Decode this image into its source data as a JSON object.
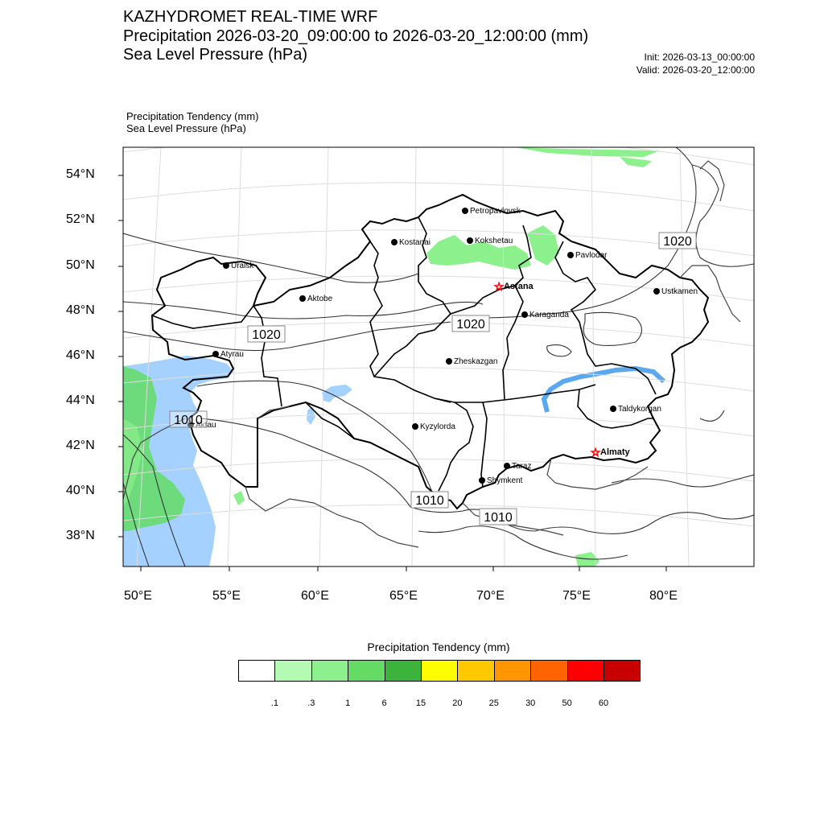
{
  "header": {
    "line1": "KAZHYDROMET REAL-TIME WRF",
    "line2": "Precipitation 2026-03-20_09:00:00 to 2026-03-20_12:00:00 (mm)",
    "line3": "Sea Level Pressure  (hPa)",
    "init": "Init: 2026-03-13_00:00:00",
    "valid": "Valid: 2026-03-20_12:00:00"
  },
  "subtitle": {
    "line1": "Precipitation Tendency   (mm)",
    "line2": "Sea Level Pressure   (hPa)"
  },
  "axes": {
    "lat_labels": [
      "54°N",
      "52°N",
      "50°N",
      "48°N",
      "46°N",
      "44°N",
      "42°N",
      "40°N",
      "38°N"
    ],
    "lon_labels": [
      "50°E",
      "55°E",
      "60°E",
      "65°E",
      "70°E",
      "75°E",
      "80°E"
    ]
  },
  "cities": [
    {
      "name": "Petropavlovsk",
      "bold": false
    },
    {
      "name": "Kostanai",
      "bold": false
    },
    {
      "name": "Kokshetau",
      "bold": false
    },
    {
      "name": "Pavlodar",
      "bold": false
    },
    {
      "name": "Uralsk",
      "bold": false
    },
    {
      "name": "Aktobe",
      "bold": false
    },
    {
      "name": "Astana",
      "bold": true,
      "capital": true
    },
    {
      "name": "Ustkamen",
      "bold": false
    },
    {
      "name": "Karaganda",
      "bold": false
    },
    {
      "name": "Atyrau",
      "bold": false
    },
    {
      "name": "Zheskazgan",
      "bold": false
    },
    {
      "name": "Aktau",
      "bold": false
    },
    {
      "name": "Taldykorgan",
      "bold": false
    },
    {
      "name": "Kyzylorda",
      "bold": false
    },
    {
      "name": "Almaty",
      "bold": true,
      "capital": true
    },
    {
      "name": "Taraz",
      "bold": false
    },
    {
      "name": "Shymkent",
      "bold": false
    }
  ],
  "isobar_labels": [
    "1020",
    "1020",
    "1020",
    "1010",
    "1010",
    "1010"
  ],
  "colorbar": {
    "title": "Precipitation Tendency (mm)",
    "levels": [
      ".1",
      ".3",
      "1",
      "6",
      "15",
      "20",
      "25",
      "30",
      "50",
      "60"
    ],
    "colors": [
      "#ffffff",
      "#b4fab4",
      "#8cf08c",
      "#64dc64",
      "#3cb43c",
      "#ffff00",
      "#ffc800",
      "#ff9600",
      "#ff6400",
      "#ff0000",
      "#c80000"
    ]
  },
  "colors": {
    "water": "#a4d1ff",
    "precip_light": "#8cf08c",
    "precip_med": "#64dc64",
    "capital_star": "#ff0000"
  }
}
